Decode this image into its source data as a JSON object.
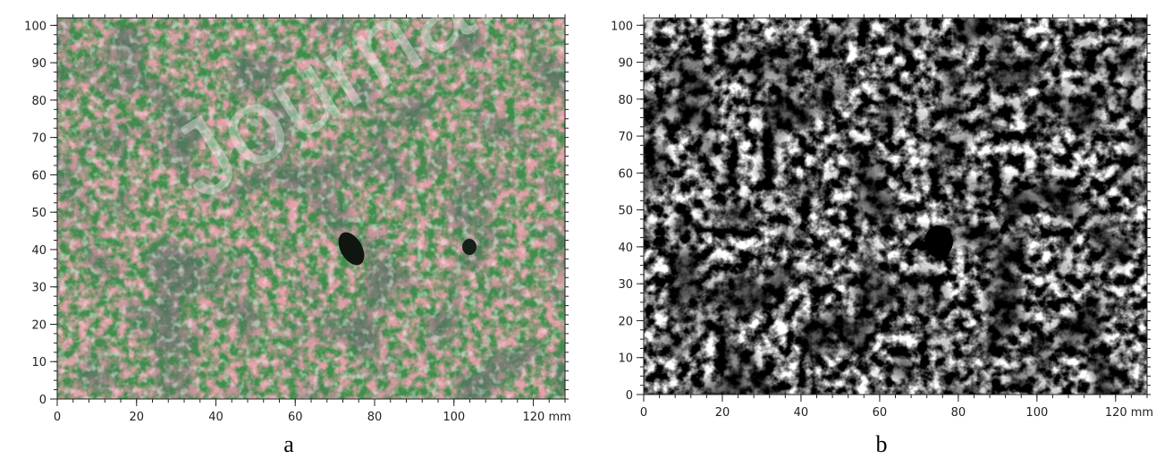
{
  "chart_data": [
    {
      "type": "heatmap",
      "panel_label": "a",
      "color_scheme": "rgb-composite",
      "colors": {
        "green": "#3f8f4b",
        "red": "#c85a66",
        "gray": "#8f8a85",
        "light": "#d9d9d9",
        "dark": "#1d2a22"
      },
      "x_ticks": [
        "0",
        "20",
        "40",
        "60",
        "80",
        "100",
        "120 mm"
      ],
      "y_ticks": [
        "0",
        "10",
        "20",
        "30",
        "40",
        "50",
        "60",
        "70",
        "80",
        "90",
        "100"
      ],
      "xlim": [
        0,
        128
      ],
      "ylim": [
        0,
        102
      ],
      "grid": false
    },
    {
      "type": "heatmap",
      "panel_label": "b",
      "color_scheme": "grayscale",
      "colors": {
        "white": "#ffffff",
        "gray": "#808080",
        "black": "#000000"
      },
      "x_ticks": [
        "0",
        "20",
        "40",
        "60",
        "80",
        "100",
        "120 mm"
      ],
      "y_ticks": [
        "0",
        "10",
        "20",
        "30",
        "40",
        "50",
        "60",
        "70",
        "80",
        "90",
        "100"
      ],
      "xlim": [
        0,
        128
      ],
      "ylim": [
        0,
        102
      ],
      "grid": false
    }
  ],
  "watermark_text": "Journal"
}
